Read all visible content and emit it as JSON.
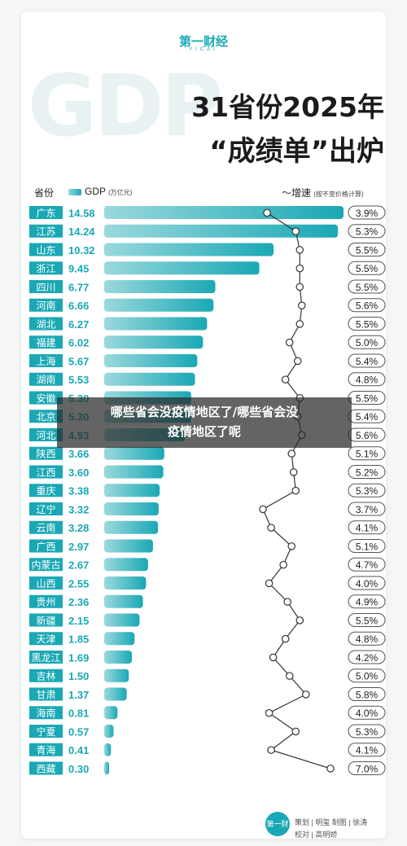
{
  "header": {
    "logo": "第一财经",
    "logo_sub": "YICAI",
    "bg_text": "GDP",
    "title_line1": "31省份2025年",
    "title_line2": "“成绩单”出炉"
  },
  "legend": {
    "province_label": "省份",
    "gdp_label": "GDP",
    "gdp_unit": "(万亿元)",
    "growth_label": "增速",
    "growth_note": "(按不变价格计算)"
  },
  "chart_data": {
    "type": "bar",
    "categories": [
      "广东",
      "江苏",
      "山东",
      "浙江",
      "四川",
      "河南",
      "湖北",
      "福建",
      "上海",
      "湖南",
      "安徽",
      "北京",
      "河北",
      "陕西",
      "江西",
      "重庆",
      "辽宁",
      "云南",
      "广西",
      "内蒙古",
      "山西",
      "贵州",
      "新疆",
      "天津",
      "黑龙江",
      "吉林",
      "甘肃",
      "海南",
      "宁夏",
      "青海",
      "西藏"
    ],
    "series": [
      {
        "name": "GDP",
        "unit": "(万亿元)",
        "values": [
          14.58,
          14.24,
          10.32,
          9.45,
          6.77,
          6.66,
          6.27,
          6.02,
          5.67,
          5.53,
          5.3,
          5.3,
          4.93,
          3.66,
          3.6,
          3.38,
          3.32,
          3.28,
          2.97,
          2.67,
          2.55,
          2.36,
          2.15,
          1.85,
          1.69,
          1.5,
          1.37,
          0.81,
          0.57,
          0.41,
          0.3
        ]
      },
      {
        "name": "增速",
        "values": [
          3.9,
          5.3,
          5.5,
          5.5,
          5.5,
          5.6,
          5.5,
          5.0,
          5.4,
          4.8,
          5.5,
          5.4,
          5.6,
          5.1,
          5.2,
          5.3,
          3.7,
          4.1,
          5.1,
          4.7,
          4.0,
          4.9,
          5.5,
          4.8,
          4.2,
          5.0,
          5.8,
          4.0,
          5.3,
          4.1,
          7.0
        ]
      }
    ],
    "value_labels": [
      "14.58",
      "14.24",
      "10.32",
      "9.45",
      "6.77",
      "6.66",
      "6.27",
      "6.02",
      "5.67",
      "5.53",
      "5.30",
      "5.30",
      "4.93",
      "3.66",
      "3.60",
      "3.38",
      "3.32",
      "3.28",
      "2.97",
      "2.67",
      "2.55",
      "2.36",
      "2.15",
      "1.85",
      "1.69",
      "1.50",
      "1.37",
      "0.81",
      "0.57",
      "0.41",
      "0.30"
    ],
    "growth_labels": [
      "3.9%",
      "5.3%",
      "5.5%",
      "5.5%",
      "5.5%",
      "5.6%",
      "5.5%",
      "5.0%",
      "5.4%",
      "4.8%",
      "5.5%",
      "5.4%",
      "5.6%",
      "5.1%",
      "5.2%",
      "5.3%",
      "3.7%",
      "4.1%",
      "5.1%",
      "4.7%",
      "4.0%",
      "4.9%",
      "5.5%",
      "4.8%",
      "4.2%",
      "5.0%",
      "5.8%",
      "4.0%",
      "5.3%",
      "4.1%",
      "7.0%"
    ],
    "xlim": [
      0,
      14.58
    ],
    "growth_range": [
      3.5,
      7.0
    ],
    "colors": {
      "bar_start": "#9ad9dc",
      "bar_end": "#1aa8b5",
      "province_bg": "#1aa8b5",
      "line": "#333333"
    }
  },
  "overlay": {
    "line1": "哪些省会没疫情地区了/哪些省会没",
    "line2": "疫情地区了呢"
  },
  "footer": {
    "logo": "第一财经",
    "line1": "策划 | 明玺 制图 | 徐涛",
    "line2": "校对 | 高明娇"
  }
}
